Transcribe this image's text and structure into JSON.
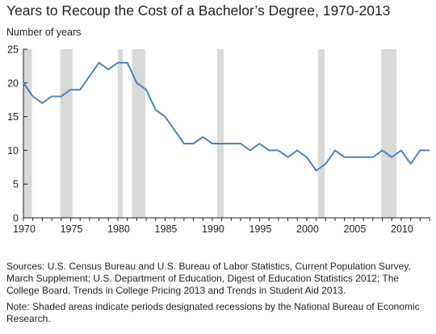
{
  "chart_data": {
    "type": "line",
    "title": "Years to Recoup the Cost of a Bachelor’s Degree, 1970-2013",
    "ylabel": "Number of years",
    "xlabel": "",
    "xlim": [
      1970,
      2013
    ],
    "ylim": [
      0,
      25
    ],
    "yticks": [
      0,
      5,
      10,
      15,
      20,
      25
    ],
    "xticks": [
      1970,
      1975,
      1980,
      1985,
      1990,
      1995,
      2000,
      2005,
      2010
    ],
    "grid": false,
    "legend": "none",
    "line_color": "#4f81bd",
    "recession_color": "#d9d9d9",
    "series": [
      {
        "x": [
          1970,
          1971,
          1972,
          1973,
          1974,
          1975,
          1976,
          1977,
          1978,
          1979,
          1980,
          1981,
          1982,
          1983,
          1984,
          1985,
          1986,
          1987,
          1988,
          1989,
          1990,
          1991,
          1992,
          1993,
          1994,
          1995,
          1996,
          1997,
          1998,
          1999,
          2000,
          2001,
          2002,
          2003,
          2004,
          2005,
          2006,
          2007,
          2008,
          2009,
          2010,
          2011,
          2012,
          2013
        ],
        "values": [
          20,
          18,
          17,
          18,
          18,
          19,
          19,
          21,
          23,
          22,
          23,
          23,
          20,
          19,
          16,
          15,
          13,
          11,
          11,
          12,
          11,
          11,
          11,
          11,
          10,
          11,
          10,
          10,
          9,
          10,
          9,
          7,
          8,
          10,
          9,
          9,
          9,
          9,
          10,
          9,
          10,
          8,
          10,
          10
        ]
      }
    ],
    "recessions": [
      {
        "start": 1969.95,
        "end": 1970.9
      },
      {
        "start": 1973.9,
        "end": 1975.2
      },
      {
        "start": 1980.0,
        "end": 1980.5
      },
      {
        "start": 1981.5,
        "end": 1982.9
      },
      {
        "start": 1990.5,
        "end": 1991.2
      },
      {
        "start": 2001.2,
        "end": 2001.9
      },
      {
        "start": 2007.9,
        "end": 2009.5
      }
    ]
  },
  "sources_text": "Sources: U.S. Census Bureau and U.S. Bureau of Labor Statistics, Current Population Survey, March Supplement; U.S. Department of Education, Digest of Education Statistics 2012; The College Board, Trends in College Pricing 2013 and Trends in Student Aid 2013.",
  "note_text": "Note: Shaded areas indicate periods designated recessions by the National Bureau of Economic Research."
}
